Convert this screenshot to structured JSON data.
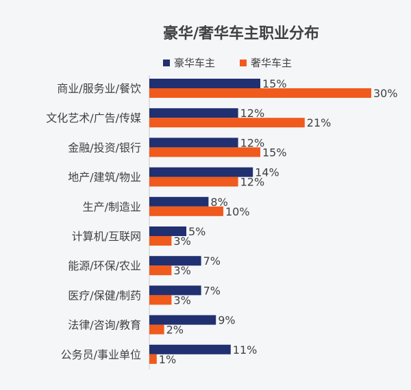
{
  "chart_data": {
    "type": "bar",
    "orientation": "horizontal",
    "title": "豪华/奢华车主职业分布",
    "legend_position": "top",
    "grid": false,
    "xlim": [
      0,
      30
    ],
    "value_suffix": "%",
    "categories": [
      "商业/服务业/餐饮",
      "文化艺术/广告/传媒",
      "金融/投资/银行",
      "地产/建筑/物业",
      "生产/制造业",
      "计算机/互联网",
      "能源/环保/农业",
      "医疗/保健/制药",
      "法律/咨询/教育",
      "公务员/事业单位"
    ],
    "series": [
      {
        "name": "豪华车主",
        "color": "#203070",
        "values": [
          15,
          12,
          12,
          14,
          8,
          5,
          7,
          7,
          9,
          11
        ]
      },
      {
        "name": "奢华车主",
        "color": "#f05a1c",
        "values": [
          30,
          21,
          15,
          12,
          10,
          3,
          3,
          3,
          2,
          1
        ]
      }
    ]
  }
}
